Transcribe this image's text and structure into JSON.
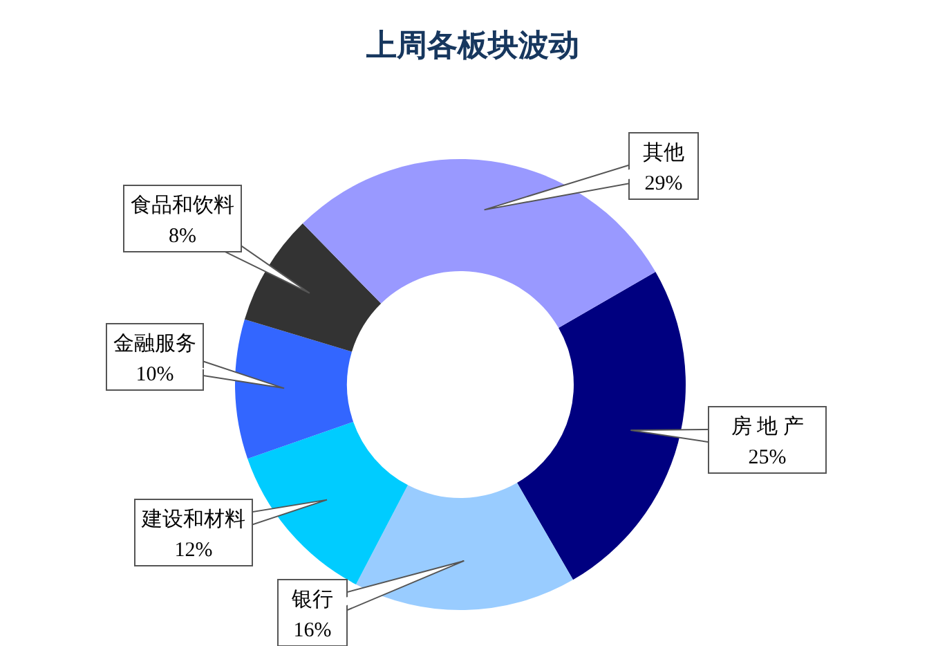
{
  "chart_data": {
    "type": "donut",
    "title": "上周各板块波动",
    "categories": [
      "房 地 产",
      "银行",
      "建设和材料",
      "金融服务",
      "食品和饮料",
      "其他"
    ],
    "values": [
      25,
      16,
      12,
      10,
      8,
      29
    ],
    "value_labels": [
      "25%",
      "16%",
      "12%",
      "10%",
      "8%",
      "29%"
    ],
    "colors": [
      "#000080",
      "#99ccff",
      "#00ccff",
      "#3366ff",
      "#333333",
      "#9999ff"
    ]
  }
}
